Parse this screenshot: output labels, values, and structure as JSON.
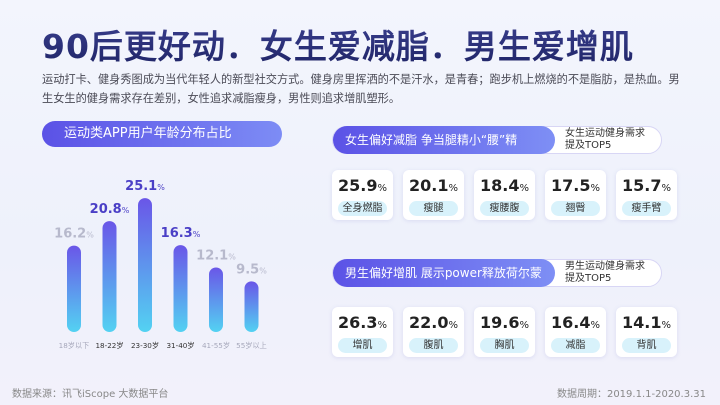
{
  "title": "90后更好动．女生爱减脂．男生爱增肌",
  "intro": "运动打卡、健身秀图成为当代年轻人的新型社交方式。健身房里挥洒的不是汗水，是青春；跑步机上燃烧的不是脂肪，是热血。男生女生的健身需求存在差别，女性追求减脂瘦身，男性则追求增肌塑形。",
  "chart_data": {
    "type": "bar",
    "title": "运动类APP用户年龄分布占比",
    "categories": [
      "18岁以下",
      "18-22岁",
      "23-30岁",
      "31-40岁",
      "41-55岁",
      "55岁以上"
    ],
    "values": [
      16.2,
      20.8,
      25.1,
      16.3,
      12.1,
      9.5
    ],
    "unit": "%",
    "highlight": [
      false,
      true,
      true,
      true,
      false,
      false
    ],
    "ylim": [
      0,
      30
    ]
  },
  "female": {
    "header": "女生偏好减脂 争当腿精小“腰”精",
    "note_line1": "女生运动健身需求",
    "note_line2": "提及TOP5",
    "items": [
      {
        "value": "25.9",
        "label": "全身燃脂"
      },
      {
        "value": "20.1",
        "label": "瘦腿"
      },
      {
        "value": "18.4",
        "label": "瘦腰腹"
      },
      {
        "value": "17.5",
        "label": "翘臀"
      },
      {
        "value": "15.7",
        "label": "瘦手臂"
      }
    ]
  },
  "male": {
    "header": "男生偏好增肌 展示power释放荷尔蒙",
    "note_line1": "男生运动健身需求",
    "note_line2": "提及TOP5",
    "items": [
      {
        "value": "26.3",
        "label": "增肌"
      },
      {
        "value": "22.0",
        "label": "腹肌"
      },
      {
        "value": "19.6",
        "label": "胸肌"
      },
      {
        "value": "16.4",
        "label": "减脂"
      },
      {
        "value": "14.1",
        "label": "背肌"
      }
    ]
  },
  "percent_sign": "%",
  "footer": {
    "source": "数据来源：讯飞iScope 大数据平台",
    "period": "数据周期：2019.1.1-2020.3.31"
  },
  "colors": {
    "accent": "#5b52e6",
    "bar_top": "#6a56e8",
    "bar_bottom": "#53d2f2",
    "highlight_text": "#4a3fc6",
    "muted_text": "#b7b9cc"
  }
}
